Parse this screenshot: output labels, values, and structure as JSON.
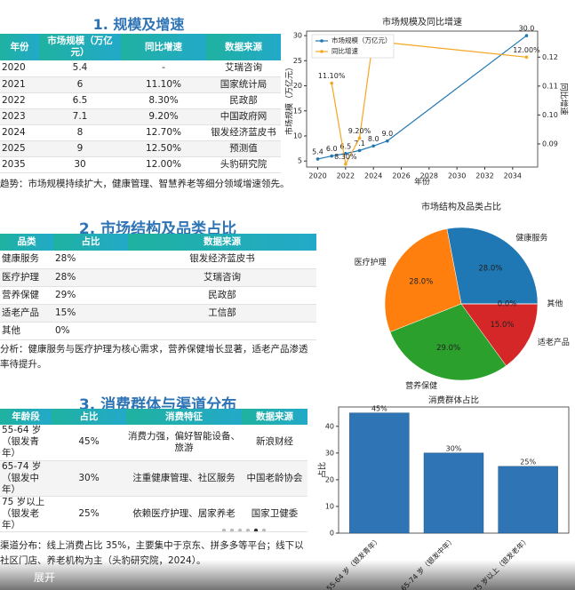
{
  "sections": [
    {
      "title": "1. 规模及增速",
      "table": {
        "header": [
          "年份",
          "市场规模（万亿元）",
          "同比增速",
          "数据来源"
        ],
        "rows": [
          [
            "2020",
            "5.4",
            "-",
            "艾瑞咨询"
          ],
          [
            "2021",
            "6",
            "11.10%",
            "国家统计局"
          ],
          [
            "2022",
            "6.5",
            "8.30%",
            "民政部"
          ],
          [
            "2023",
            "7.1",
            "9.20%",
            "中国政府网"
          ],
          [
            "2024",
            "8",
            "12.70%",
            "银发经济蓝皮书"
          ],
          [
            "2025",
            "9",
            "12.50%",
            "预测值"
          ],
          [
            "2035",
            "30",
            "12.00%",
            "头豹研究院"
          ]
        ]
      },
      "note": "趋势：市场规模持续扩大，健康管理、智慧养老等细分领域增速领先。"
    },
    {
      "title": "2. 市场结构及品类占比",
      "table": {
        "header": [
          "品类",
          "占比",
          "数据来源"
        ],
        "rows": [
          [
            "健康服务",
            "28%",
            "银发经济蓝皮书"
          ],
          [
            "医疗护理",
            "28%",
            "艾瑞咨询"
          ],
          [
            "营养保健",
            "29%",
            "民政部"
          ],
          [
            "适老产品",
            "15%",
            "工信部"
          ],
          [
            "其他",
            "0%"
          ]
        ]
      },
      "note": "分析：健康服务与医疗护理为核心需求，营养保健增长显著，适老产品渗透率待提升。"
    },
    {
      "title": "3. 消费群体与渠道分布",
      "table": {
        "header": [
          "年龄段",
          "占比",
          "消费特征",
          "数据来源"
        ],
        "rows": [
          [
            "55-64 岁（银发青年）",
            "45%",
            "消费力强，偏好智能设备、旅游",
            "新浪财经"
          ],
          [
            "65-74 岁（银发中年）",
            "30%",
            "注重健康管理、社区服务",
            "中国老龄协会"
          ],
          [
            "75 岁以上（银发老年）",
            "25%",
            "依赖医疗护理、居家养老",
            "国家卫健委"
          ]
        ]
      },
      "note": "渠道分布：线上消费占比 35%，主要集中于京东、拼多多等平台；线下以社区门店、养老机构为主（头豹研究院，2024）。"
    }
  ],
  "chart_data": [
    {
      "type": "line",
      "title": "市场规模及同比增速",
      "xlabel": "年份",
      "ylabel": "市场规模（万亿元）",
      "y2label": "同比增速",
      "x": [
        2020,
        2021,
        2022,
        2023,
        2024,
        2025,
        2035
      ],
      "series": [
        {
          "name": "市场规模（万亿元）",
          "color": "#1f77b4",
          "values": [
            5.4,
            6,
            6.5,
            7.1,
            8,
            9,
            30
          ],
          "value_labels": [
            "5.4",
            "6.0",
            "6.5",
            "7.1",
            "8.0",
            "9.0",
            "30.0"
          ]
        },
        {
          "name": "同比增速",
          "color": "#f5a623",
          "axis": "y2",
          "values": [
            null,
            0.111,
            0.083,
            0.092,
            0.127,
            0.125,
            0.12
          ],
          "value_labels": [
            null,
            "11.10%",
            "8.30%",
            "9.20%",
            null,
            null,
            "12.00%"
          ]
        }
      ],
      "xlim": [
        2019.2,
        2035.8
      ],
      "xticks": [
        2020,
        2022,
        2024,
        2026,
        2028,
        2030,
        2032,
        2034
      ],
      "ylim": [
        3.8,
        30.9
      ],
      "yticks": [
        5,
        10,
        15,
        20,
        25,
        30
      ],
      "y2lim": [
        0.082,
        0.129
      ],
      "y2ticks": [
        0.09,
        {
          "value": 0.1,
          "label": "0.10"
        },
        0.11,
        0.12
      ],
      "legend": "upper-left"
    },
    {
      "type": "pie",
      "title": "市场结构及品类占比",
      "categories": [
        "健康服务",
        "医疗护理",
        "营养保健",
        "适老产品",
        "其他"
      ],
      "values": [
        28,
        28,
        29,
        15,
        0
      ],
      "value_labels": [
        "28.0%",
        "28.0%",
        "29.0%",
        "15.0%",
        "0.0%"
      ],
      "colors": [
        "#1f77b4",
        "#ff7f0e",
        "#2ca02c",
        "#d62728",
        "#9467bd"
      ]
    },
    {
      "type": "bar",
      "title": "消费群体占比",
      "ylabel": "占比",
      "categories": [
        "55-64 岁（银发青年）",
        "65-74 岁（银发中年）",
        "75 岁以上（银发老年）"
      ],
      "values": [
        45,
        30,
        25
      ],
      "value_labels": [
        "45%",
        "30%",
        "25%"
      ],
      "color": "#2f75b5",
      "ylim": [
        0,
        47.25
      ],
      "yticks": [
        0,
        10,
        20,
        30,
        40
      ]
    }
  ],
  "ui": {
    "expand": "展开"
  }
}
